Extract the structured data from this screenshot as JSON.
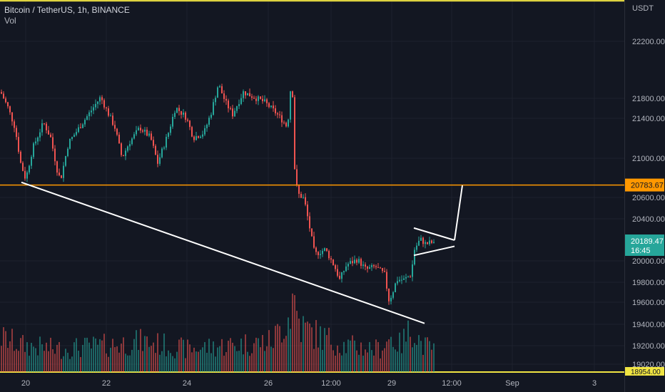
{
  "symbol_legend": "Bitcoin / TetherUS, 1h, BINANCE",
  "volume_label": "Vol",
  "chart_data": {
    "type": "candlestick",
    "currency": "USDT",
    "y_ticks": [
      "22200.00",
      "21800.00",
      "21400.00",
      "21000.00",
      "20600.00",
      "20400.00",
      "20000.00",
      "19800.00",
      "19600.00",
      "19400.00",
      "19200.00",
      "19020.00"
    ],
    "ylim": [
      18954,
      22620
    ],
    "x_ticks": [
      "20",
      "22",
      "24",
      "26",
      "12:00",
      "29",
      "12:00",
      "Sep",
      "3"
    ],
    "horizontal_level": {
      "price": 20783.67,
      "label": "20783.67",
      "color": "#ff9800"
    },
    "last_price": {
      "label": "20189.47",
      "countdown": "16:45",
      "color": "#26a69a"
    },
    "bottom_price_label": "18954.00",
    "top_line_price": 22600,
    "colors": {
      "up": "#26a69a",
      "down": "#ef5350",
      "background": "#131722",
      "drawing": "#ffffff"
    },
    "price_path": [
      [
        0,
        21700
      ],
      [
        10,
        21550
      ],
      [
        20,
        21350
      ],
      [
        28,
        21000
      ],
      [
        35,
        20840
      ],
      [
        45,
        21150
      ],
      [
        60,
        21400
      ],
      [
        70,
        21250
      ],
      [
        80,
        20900
      ],
      [
        84,
        20840
      ],
      [
        95,
        21200
      ],
      [
        110,
        21350
      ],
      [
        125,
        21500
      ],
      [
        140,
        21650
      ],
      [
        150,
        21500
      ],
      [
        160,
        21350
      ],
      [
        170,
        21050
      ],
      [
        180,
        21200
      ],
      [
        195,
        21350
      ],
      [
        210,
        21250
      ],
      [
        220,
        21000
      ],
      [
        235,
        21300
      ],
      [
        245,
        21550
      ],
      [
        260,
        21450
      ],
      [
        270,
        21250
      ],
      [
        285,
        21300
      ],
      [
        295,
        21500
      ],
      [
        305,
        21780
      ],
      [
        315,
        21600
      ],
      [
        325,
        21480
      ],
      [
        340,
        21700
      ],
      [
        355,
        21650
      ],
      [
        370,
        21600
      ],
      [
        385,
        21500
      ],
      [
        395,
        21420
      ],
      [
        402,
        21350
      ],
      [
        405,
        21650
      ],
      [
        408,
        21850
      ],
      [
        410,
        21500
      ],
      [
        412,
        20950
      ],
      [
        416,
        20700
      ],
      [
        425,
        20650
      ],
      [
        432,
        20400
      ],
      [
        440,
        20100
      ],
      [
        455,
        20150
      ],
      [
        468,
        19980
      ],
      [
        475,
        19850
      ],
      [
        485,
        20000
      ],
      [
        500,
        20050
      ],
      [
        512,
        19950
      ],
      [
        525,
        19980
      ],
      [
        538,
        19900
      ],
      [
        544,
        19650
      ],
      [
        548,
        19700
      ],
      [
        555,
        19850
      ],
      [
        565,
        19850
      ],
      [
        575,
        19900
      ],
      [
        580,
        20150
      ],
      [
        588,
        20250
      ],
      [
        596,
        20200
      ],
      [
        603,
        20220
      ],
      [
        609,
        20189
      ]
    ],
    "volume_profile": [
      [
        0,
        0.45
      ],
      [
        30,
        0.35
      ],
      [
        80,
        0.3
      ],
      [
        150,
        0.35
      ],
      [
        200,
        0.4
      ],
      [
        260,
        0.3
      ],
      [
        320,
        0.35
      ],
      [
        380,
        0.4
      ],
      [
        405,
        0.75
      ],
      [
        410,
        1.0
      ],
      [
        420,
        0.6
      ],
      [
        440,
        0.5
      ],
      [
        480,
        0.35
      ],
      [
        530,
        0.3
      ],
      [
        546,
        0.45
      ],
      [
        560,
        0.35
      ],
      [
        578,
        0.6
      ],
      [
        590,
        0.35
      ],
      [
        609,
        0.3
      ]
    ],
    "drawings": [
      {
        "type": "line",
        "points": [
          [
            30,
            20810
          ],
          [
            595,
            19420
          ]
        ]
      },
      {
        "type": "line",
        "points": [
          [
            580,
            20360
          ],
          [
            637,
            20240
          ]
        ]
      },
      {
        "type": "line",
        "points": [
          [
            580,
            20090
          ],
          [
            637,
            20180
          ]
        ]
      },
      {
        "type": "line",
        "points": [
          [
            637,
            20240
          ],
          [
            648,
            20780
          ]
        ]
      }
    ]
  }
}
